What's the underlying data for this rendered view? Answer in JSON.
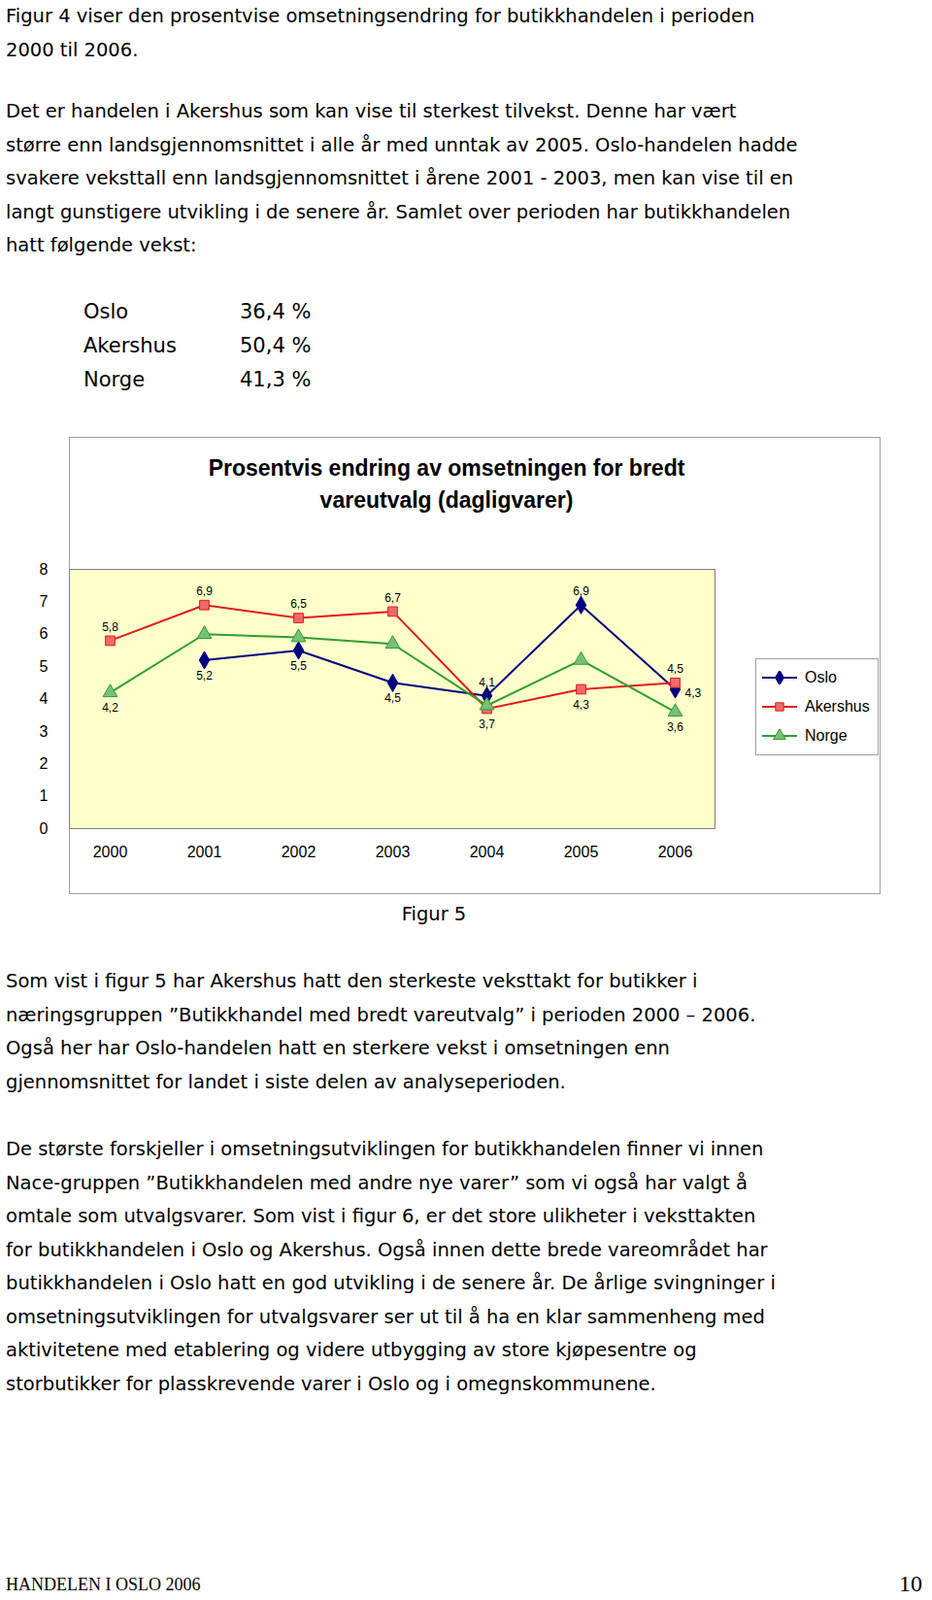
{
  "paragraphs": [
    [
      "Figur 4 viser den prosentvise omsetningsendring for butikkhandelen i perioden",
      "2000 til 2006."
    ],
    [
      "Det er handelen i Akershus som kan vise til sterkest tilvekst. Denne har vært",
      "større enn landsgjennomsnittet i alle år med unntak av 2005. Oslo-handelen hadde",
      "svakere veksttall enn landsgjennomsnittet i årene 2001 - 2003, men kan vise til en",
      "langt gunstigere utvikling i de senere år. Samlet over perioden har butikkhandelen",
      "hatt følgende vekst:"
    ]
  ],
  "growth_table": {
    "rows": [
      [
        "Oslo",
        "36,4 %"
      ],
      [
        "Akershus",
        "50,4 %"
      ],
      [
        "Norge",
        "41,3 %"
      ]
    ]
  },
  "chart_data": {
    "type": "line",
    "title": "Prosentvis endring av omsetningen for bredt vareutvalg (dagligvarer)",
    "categories": [
      "2000",
      "2001",
      "2002",
      "2003",
      "2004",
      "2005",
      "2006"
    ],
    "series": [
      {
        "name": "Oslo",
        "color": "#000080",
        "marker": "diamond",
        "values": [
          null,
          5.2,
          5.5,
          4.5,
          4.1,
          6.9,
          4.3
        ],
        "value_labels": [
          null,
          "5,2",
          "5,5",
          "4,5",
          "4,1",
          "6,9",
          "4,3"
        ]
      },
      {
        "name": "Akershus",
        "color": "#E31A1A",
        "marker": "square",
        "values": [
          5.8,
          6.9,
          6.5,
          6.7,
          3.7,
          4.3,
          4.5
        ],
        "value_labels": [
          "5,8",
          "6,9",
          "6,5",
          "6,7",
          "3,7",
          "4,3",
          "4,5"
        ]
      },
      {
        "name": "Norge",
        "color": "#2E9E2E",
        "marker": "triangle",
        "values": [
          4.2,
          6.0,
          5.9,
          5.7,
          3.8,
          5.2,
          3.6
        ],
        "value_labels": [
          "4,2",
          null,
          null,
          null,
          null,
          null,
          "3,6"
        ]
      }
    ],
    "ylim": [
      0,
      8
    ],
    "yticks": [
      0,
      1,
      2,
      3,
      4,
      5,
      6,
      7,
      8
    ],
    "grid": false,
    "legend": "right",
    "data_labels": true
  },
  "caption": "Figur 5",
  "paragraphs_after": [
    [
      "Som vist i figur 5 har Akershus hatt den sterkeste veksttakt for butikker i",
      "næringsgruppen ”Butikkhandel med bredt vareutvalg” i perioden 2000 – 2006.",
      "Også her har Oslo-handelen hatt en sterkere vekst i omsetningen enn",
      "gjennomsnittet for landet i siste delen av analyseperioden."
    ],
    [
      "De største forskjeller i omsetningsutviklingen for butikkhandelen finner vi innen",
      "Nace-gruppen ”Butikkhandelen med andre nye varer” som vi også har valgt å",
      "omtale som utvalgsvarer.  Som vist i figur 6, er det store ulikheter i veksttakten",
      "for butikkhandelen i Oslo og Akershus. Også innen dette brede vareområdet har",
      "butikkhandelen i Oslo hatt en god utvikling i de senere år. De årlige svingninger i",
      "omsetningsutviklingen for utvalgsvarer ser ut til å ha en klar sammenheng med",
      "aktivitetene med etablering og videre utbygging av store kjøpesentre og",
      "storbutikker for plasskrevende varer i Oslo og i omegnskommunene."
    ]
  ],
  "footer": {
    "left": "HANDELEN I OSLO 2006",
    "page": "10"
  }
}
